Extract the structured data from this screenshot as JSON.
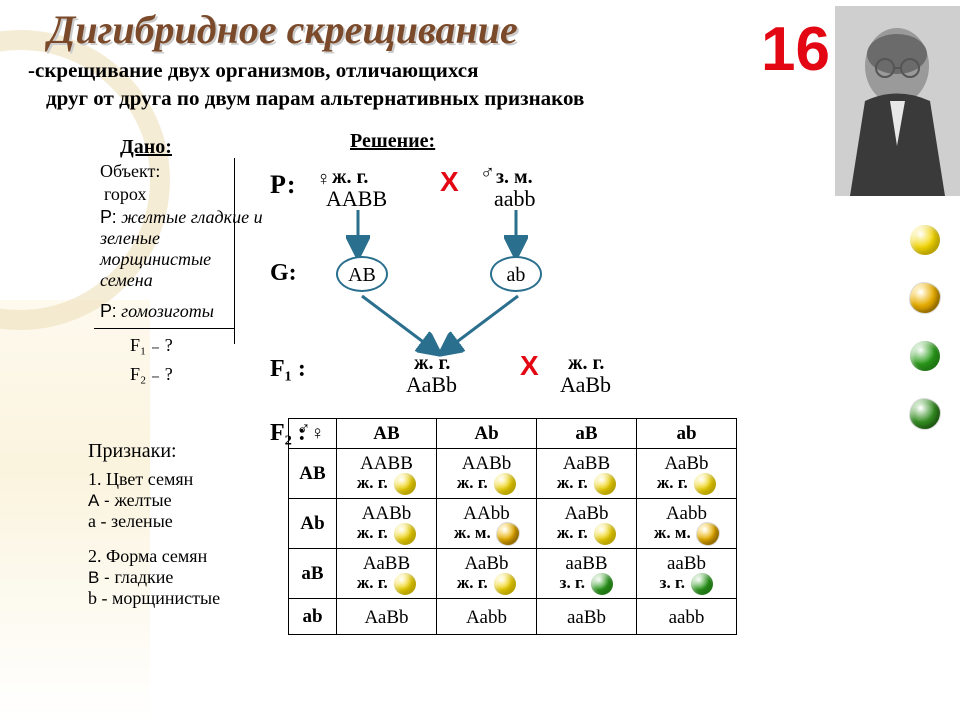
{
  "slide_number": "16",
  "title": "Дигибридное скрещивание",
  "subtitle_l1": "-скрещивание двух организмов, отличающихся",
  "subtitle_l2": "друг от друга по двум парам альтернативных признаков",
  "given": {
    "header": "Дано:",
    "object_lbl": "Объект:",
    "object_val": "горох",
    "p_lbl": "Р:",
    "p_val": "желтые гладкие и зеленые морщинистые семена",
    "p2_lbl": "Р:",
    "p2_val": "гомозиготы",
    "f1": "F₁ ₋  ?",
    "f2": "F₂ ₋  ?"
  },
  "traits": {
    "header": "Признаки:",
    "t1": "1. Цвет семян",
    "a_dom": "А - ",
    "a_dom_v": "желтые",
    "a_rec": "а - ",
    "a_rec_v": "зеленые",
    "t2": "2. Форма  семян",
    "b_dom": "В - ",
    "b_dom_v": "гладкие",
    "b_rec": "b - ",
    "b_rec_v": "морщинистые"
  },
  "solution": {
    "header": "Решение:",
    "p_lbl": "Р:",
    "g_lbl": "G:",
    "f1_lbl": "F₁ :",
    "f2_lbl": "F₂ :",
    "cross": "Х",
    "female": "♀",
    "male": "♂",
    "p_fem_ph": "ж. г.",
    "p_fem_g": "ААВВ",
    "p_mal_ph": "з. м.",
    "p_mal_g": "ааbb",
    "gam1": "АВ",
    "gam2": "аb",
    "f1_ph1": "ж. г.",
    "f1_g1": "АаВb",
    "f1_ph2": "ж. г.",
    "f1_g2": "АаВb"
  },
  "punnett": {
    "corner": "♂♀",
    "cols": [
      "АВ",
      "Аb",
      "аВ",
      "аb"
    ],
    "rows": [
      "АВ",
      "Аb",
      "аВ",
      "аb"
    ],
    "cells": [
      [
        {
          "g": "ААВВ",
          "p": "ж. г.",
          "pea": "ys"
        },
        {
          "g": "ААВb",
          "p": "ж. г.",
          "pea": "ys"
        },
        {
          "g": "АаВВ",
          "p": "ж. г.",
          "pea": "ys"
        },
        {
          "g": "АаВb",
          "p": "ж. г.",
          "pea": "ys"
        }
      ],
      [
        {
          "g": "ААВb",
          "p": "ж. г.",
          "pea": "ys"
        },
        {
          "g": "ААbb",
          "p": "ж. м.",
          "pea": "yw"
        },
        {
          "g": "АаВb",
          "p": "ж. г.",
          "pea": "ys"
        },
        {
          "g": "Ааbb",
          "p": "ж. м.",
          "pea": "yw"
        }
      ],
      [
        {
          "g": "АаВВ",
          "p": "ж. г.",
          "pea": "ys"
        },
        {
          "g": "АаВb",
          "p": "ж. г.",
          "pea": "ys"
        },
        {
          "g": "ааВВ",
          "p": "з. г.",
          "pea": "gs"
        },
        {
          "g": "ааВb",
          "p": "з. г.",
          "pea": "gs"
        }
      ],
      [
        {
          "g": "АаВb",
          "p": "",
          "pea": ""
        },
        {
          "g": "Ааbb",
          "p": "",
          "pea": ""
        },
        {
          "g": "ааВb",
          "p": "",
          "pea": ""
        },
        {
          "g": "ааbb",
          "p": "",
          "pea": ""
        }
      ]
    ]
  },
  "colors": {
    "yellow": "#f2d500",
    "yellow_wr": "#d9a400",
    "green": "#2a9b1a",
    "green_wr": "#3a8a2a",
    "arrow": "#2a6f8e",
    "red": "#e30613",
    "title": "#7a4a2a"
  }
}
